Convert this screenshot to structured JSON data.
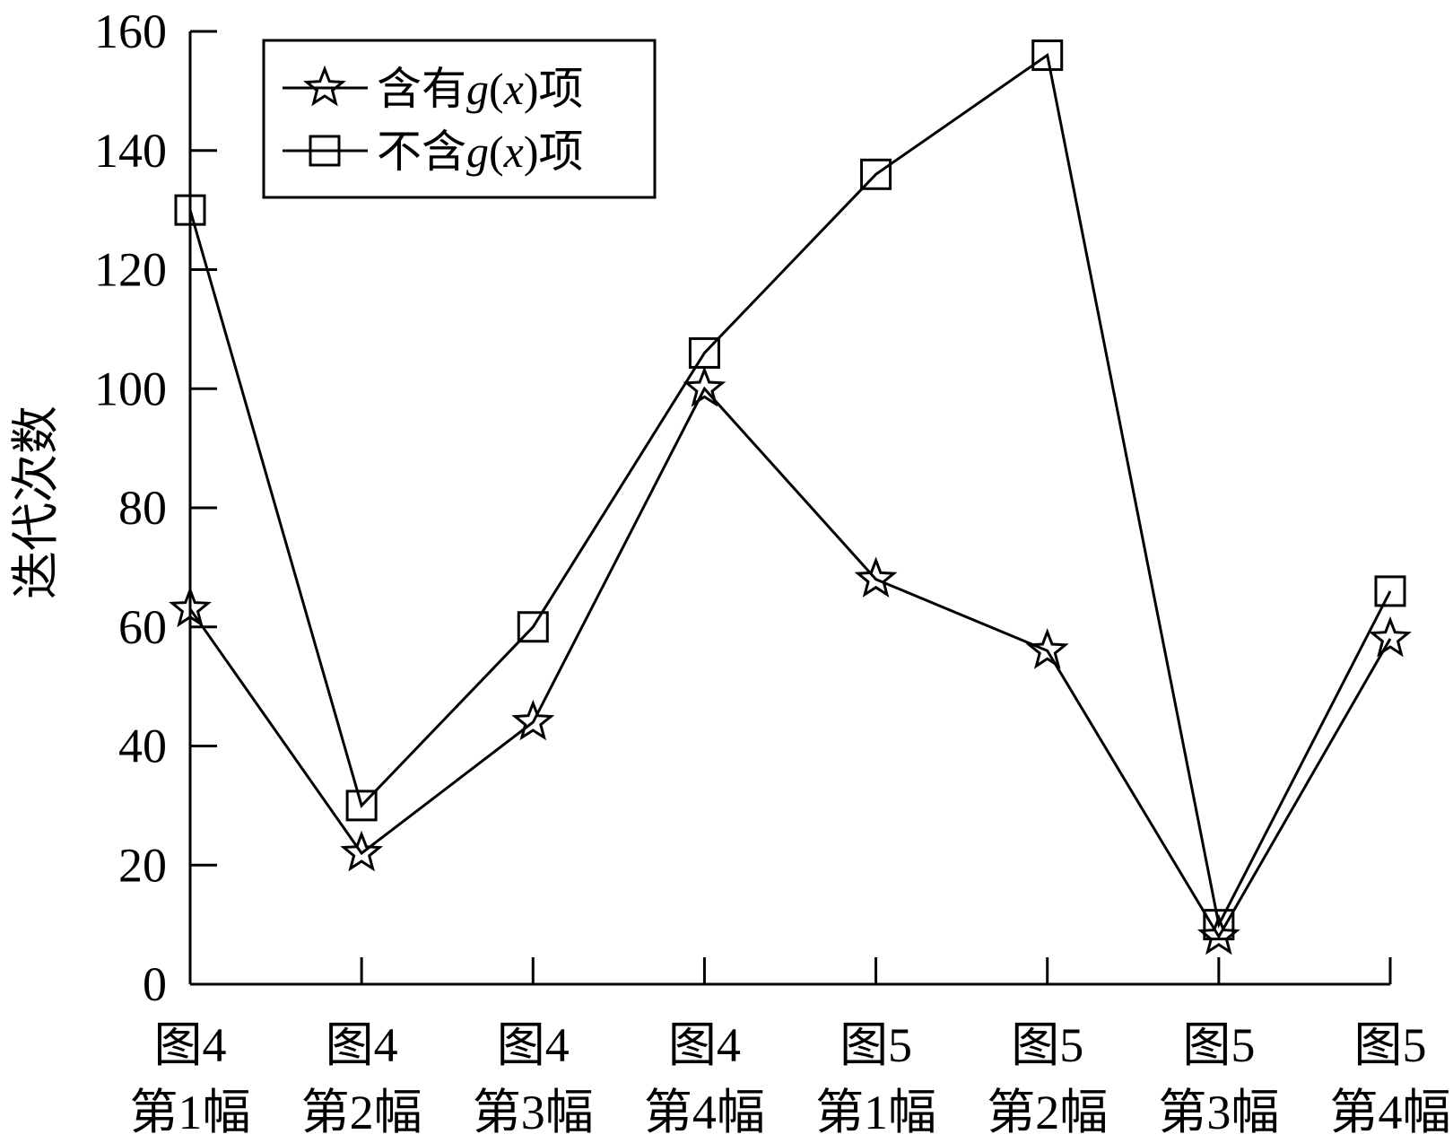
{
  "chart_data": {
    "type": "line",
    "ylabel": "迭代次数",
    "xlabel": "",
    "ylim": [
      0,
      160
    ],
    "yticks": [
      0,
      20,
      40,
      60,
      80,
      100,
      120,
      140,
      160
    ],
    "grid": false,
    "legend_position": "top-left",
    "categories": [
      [
        "图4",
        "第1幅"
      ],
      [
        "图4",
        "第2幅"
      ],
      [
        "图4",
        "第3幅"
      ],
      [
        "图4",
        "第4幅"
      ],
      [
        "图5",
        "第1幅"
      ],
      [
        "图5",
        "第2幅"
      ],
      [
        "图5",
        "第3幅"
      ],
      [
        "图5",
        "第4幅"
      ]
    ],
    "series": [
      {
        "name_parts": [
          "含有",
          "g",
          "(",
          "x",
          ")项"
        ],
        "marker": "star",
        "values": [
          63,
          22,
          44,
          100,
          68,
          56,
          8,
          58
        ]
      },
      {
        "name_parts": [
          "不含",
          "g",
          "(",
          "x",
          ")项"
        ],
        "marker": "square",
        "values": [
          130,
          30,
          60,
          106,
          136,
          156,
          10,
          66
        ]
      }
    ]
  }
}
